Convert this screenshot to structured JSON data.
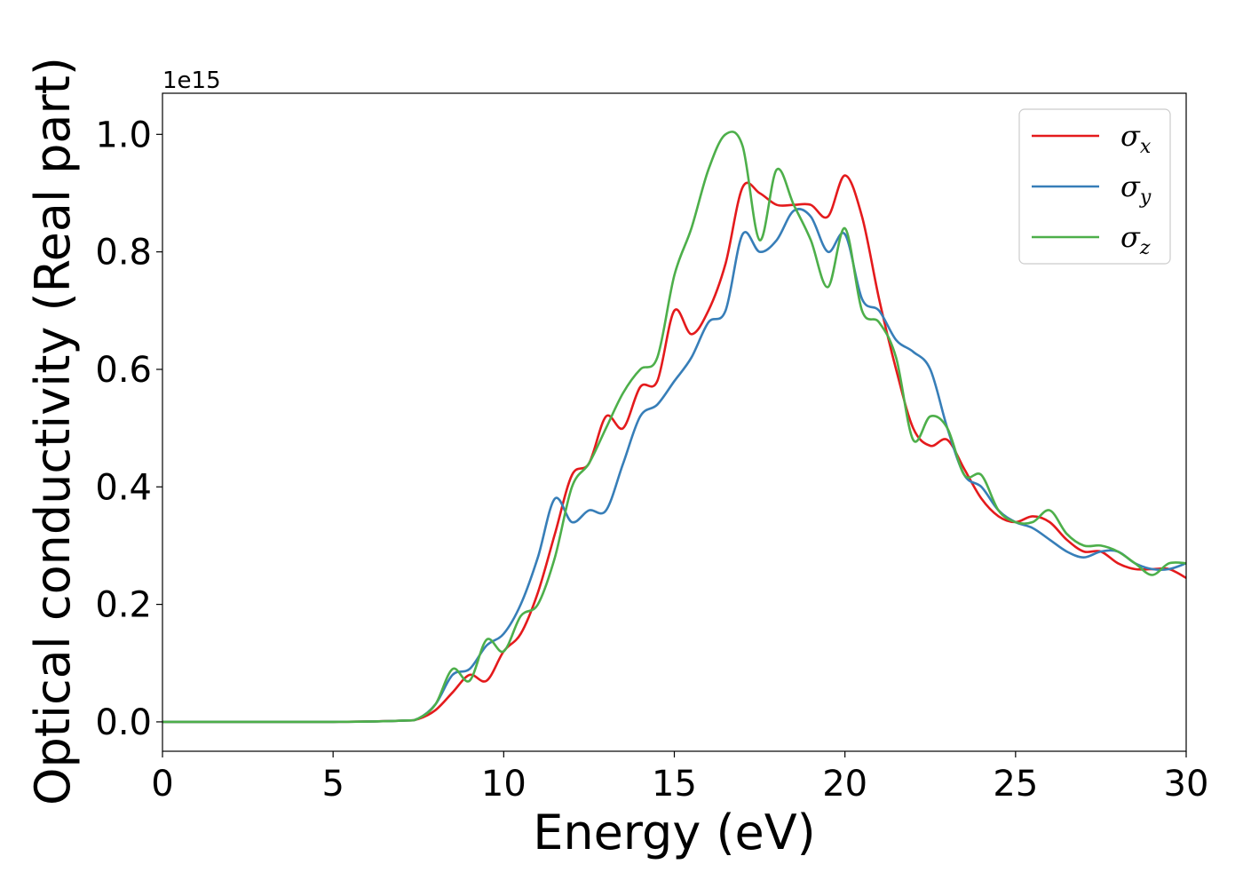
{
  "chart_data": {
    "type": "line",
    "xlabel": "Energy (eV)",
    "ylabel": "Optical conductivity (Real part)",
    "y_offset_label": "1e15",
    "xlim": [
      0,
      30
    ],
    "ylim": [
      -0.05,
      1.07
    ],
    "xticks": [
      0,
      5,
      10,
      15,
      20,
      25,
      30
    ],
    "xtick_labels": [
      "0",
      "5",
      "10",
      "15",
      "20",
      "25",
      "30"
    ],
    "yticks": [
      0.0,
      0.2,
      0.4,
      0.6,
      0.8,
      1.0
    ],
    "ytick_labels": [
      "0.0",
      "0.2",
      "0.4",
      "0.6",
      "0.8",
      "1.0"
    ],
    "grid": false,
    "legend_position": "top-right",
    "series": [
      {
        "name": "σx",
        "symbol": "σ",
        "subscript": "x",
        "color": "#e41a1c",
        "x": [
          0,
          5,
          7,
          7.5,
          8,
          8.5,
          9,
          9.5,
          10,
          10.5,
          11,
          11.5,
          12,
          12.5,
          13,
          13.5,
          14,
          14.5,
          15,
          15.5,
          16,
          16.5,
          17,
          17.5,
          18,
          18.5,
          19,
          19.5,
          20,
          20.5,
          21,
          21.5,
          22,
          22.5,
          23,
          23.5,
          24,
          24.5,
          25,
          25.5,
          26,
          26.5,
          27,
          27.5,
          28,
          28.5,
          29,
          29.5,
          30
        ],
        "y": [
          0,
          0,
          0.002,
          0.005,
          0.02,
          0.05,
          0.08,
          0.07,
          0.12,
          0.15,
          0.22,
          0.32,
          0.42,
          0.44,
          0.52,
          0.5,
          0.57,
          0.58,
          0.7,
          0.66,
          0.7,
          0.78,
          0.91,
          0.9,
          0.88,
          0.88,
          0.88,
          0.86,
          0.93,
          0.86,
          0.72,
          0.6,
          0.5,
          0.47,
          0.48,
          0.43,
          0.38,
          0.35,
          0.34,
          0.35,
          0.34,
          0.31,
          0.29,
          0.29,
          0.27,
          0.26,
          0.26,
          0.26,
          0.245
        ]
      },
      {
        "name": "σy",
        "symbol": "σ",
        "subscript": "y",
        "color": "#377eb8",
        "x": [
          0,
          5,
          7,
          7.5,
          8,
          8.5,
          9,
          9.5,
          10,
          10.5,
          11,
          11.5,
          12,
          12.5,
          13,
          13.5,
          14,
          14.5,
          15,
          15.5,
          16,
          16.5,
          17,
          17.5,
          18,
          18.5,
          19,
          19.5,
          20,
          20.5,
          21,
          21.5,
          22,
          22.5,
          23,
          23.5,
          24,
          24.5,
          25,
          25.5,
          26,
          26.5,
          27,
          27.5,
          28,
          28.5,
          29,
          29.5,
          30
        ],
        "y": [
          0,
          0,
          0.002,
          0.006,
          0.03,
          0.08,
          0.09,
          0.13,
          0.15,
          0.2,
          0.28,
          0.38,
          0.34,
          0.36,
          0.36,
          0.44,
          0.52,
          0.54,
          0.58,
          0.62,
          0.68,
          0.7,
          0.83,
          0.8,
          0.82,
          0.87,
          0.86,
          0.8,
          0.83,
          0.72,
          0.7,
          0.65,
          0.63,
          0.6,
          0.5,
          0.42,
          0.4,
          0.36,
          0.34,
          0.33,
          0.31,
          0.29,
          0.28,
          0.29,
          0.29,
          0.27,
          0.26,
          0.26,
          0.27
        ]
      },
      {
        "name": "σz",
        "symbol": "σ",
        "subscript": "z",
        "color": "#4daf4a",
        "x": [
          0,
          5,
          7,
          7.5,
          8,
          8.5,
          9,
          9.5,
          10,
          10.5,
          11,
          11.5,
          12,
          12.5,
          13,
          13.5,
          14,
          14.5,
          15,
          15.5,
          16,
          16.5,
          17,
          17.5,
          18,
          18.5,
          19,
          19.5,
          20,
          20.5,
          21,
          21.5,
          22,
          22.5,
          23,
          23.5,
          24,
          24.5,
          25,
          25.5,
          26,
          26.5,
          27,
          27.5,
          28,
          28.5,
          29,
          29.5,
          30
        ],
        "y": [
          0,
          0,
          0.002,
          0.006,
          0.03,
          0.09,
          0.07,
          0.14,
          0.12,
          0.18,
          0.2,
          0.28,
          0.4,
          0.44,
          0.5,
          0.56,
          0.6,
          0.62,
          0.76,
          0.84,
          0.94,
          1.0,
          0.98,
          0.82,
          0.94,
          0.88,
          0.82,
          0.74,
          0.84,
          0.7,
          0.68,
          0.62,
          0.48,
          0.52,
          0.5,
          0.42,
          0.42,
          0.36,
          0.34,
          0.34,
          0.36,
          0.32,
          0.3,
          0.3,
          0.29,
          0.27,
          0.25,
          0.27,
          0.27
        ]
      }
    ]
  }
}
